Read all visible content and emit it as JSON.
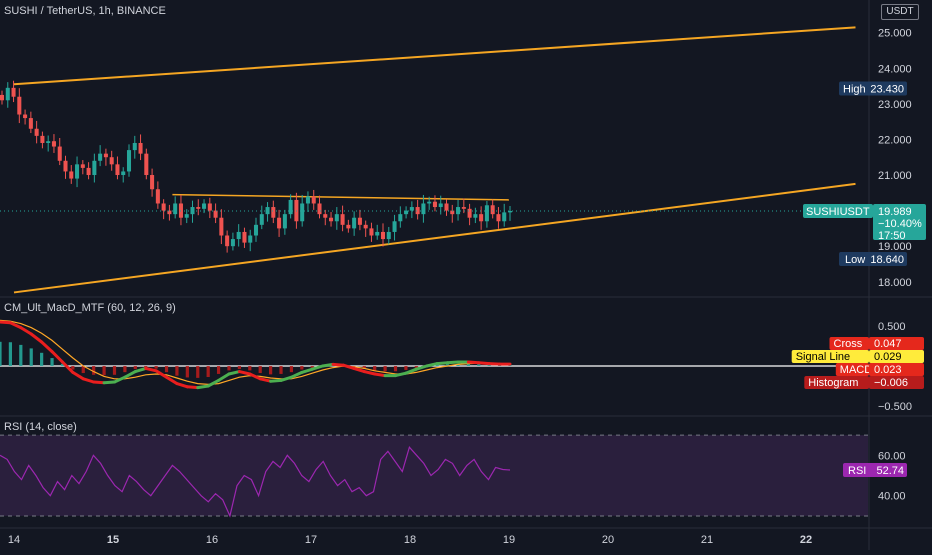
{
  "header": {
    "symbol_title": "SUSHI / TetherUS, 1h, BINANCE",
    "currency_button": "USDT",
    "macd_title": "CM_Ult_MacD_MTF (60, 12, 26, 9)",
    "rsi_title": "RSI (14, close)"
  },
  "colors": {
    "background": "#131722",
    "up": "#26a69a",
    "down": "#ef5350",
    "trendline": "#f5a623",
    "rsi_line": "#9c27b0",
    "rsi_band": "#2a1f3d",
    "macd_up": "#4caf50",
    "macd_down": "#e91e1e",
    "signal": "#ffa726"
  },
  "chart_data": [
    {
      "type": "candlestick",
      "name": "SUSHIUSDT",
      "timeframe": "1h",
      "exchange": "BINANCE",
      "x_ticks": [
        "14",
        "15",
        "16",
        "17",
        "18",
        "19",
        "20",
        "21",
        "22"
      ],
      "y_ticks": [
        "25.000",
        "24.000",
        "23.000",
        "22.000",
        "21.000",
        "19.000",
        "18.000"
      ],
      "ylim": [
        17.6,
        25.3
      ],
      "y_tick_values": [
        25,
        24,
        23,
        22,
        21,
        19,
        18
      ],
      "candles_close": [
        23.1,
        23.45,
        23.2,
        22.7,
        22.6,
        22.3,
        22.1,
        21.9,
        21.95,
        21.8,
        21.4,
        21.1,
        20.9,
        21.3,
        21.2,
        21.0,
        21.4,
        21.6,
        21.5,
        21.3,
        21.0,
        21.1,
        21.7,
        21.9,
        21.6,
        21.0,
        20.6,
        20.2,
        20.0,
        19.9,
        20.2,
        19.8,
        19.9,
        20.1,
        20.05,
        20.2,
        20.0,
        19.8,
        19.3,
        19.0,
        19.2,
        19.4,
        19.1,
        19.3,
        19.6,
        19.9,
        20.1,
        19.8,
        19.5,
        19.9,
        20.3,
        19.7,
        20.2,
        20.4,
        20.2,
        19.9,
        19.8,
        19.7,
        19.9,
        19.6,
        19.5,
        19.8,
        19.6,
        19.5,
        19.3,
        19.4,
        19.2,
        19.4,
        19.7,
        19.9,
        20.0,
        20.1,
        19.9,
        20.2,
        20.25,
        20.1,
        20.2,
        20.0,
        19.9,
        20.1,
        20.05,
        19.8,
        19.9,
        19.7,
        20.15,
        19.9,
        19.7,
        19.95,
        19.989
      ],
      "resistance_line": [
        [
          "15.6",
          20.45
        ],
        [
          "19",
          20.3
        ]
      ],
      "upper_channel": [
        [
          "14",
          23.55
        ],
        [
          "22.5",
          25.15
        ]
      ],
      "lower_channel": [
        [
          "14",
          17.7
        ],
        [
          "22.5",
          20.75
        ]
      ],
      "price_labels": {
        "high": "High",
        "high_value": "23.430",
        "low": "Low",
        "low_value": "18.640",
        "last_name": "SUSHIUSDT",
        "last_value": "19.989",
        "last_change": "−10.40%",
        "countdown": "17:50"
      },
      "high": 23.43,
      "low": 18.64,
      "last": 19.989
    },
    {
      "type": "line",
      "name": "CM_Ult_MacD_MTF (60, 12, 26, 9)",
      "y_ticks": [
        "0.500",
        "−0.500"
      ],
      "y_tick_values": [
        0.5,
        -0.5
      ],
      "ylim": [
        -0.6,
        0.6
      ],
      "macd": [
        0.55,
        0.54,
        0.48,
        0.4,
        0.3,
        0.18,
        0.05,
        -0.08,
        -0.16,
        -0.2,
        -0.21,
        -0.2,
        -0.14,
        -0.07,
        -0.03,
        -0.06,
        -0.14,
        -0.22,
        -0.26,
        -0.27,
        -0.25,
        -0.18,
        -0.1,
        -0.07,
        -0.1,
        -0.16,
        -0.19,
        -0.18,
        -0.14,
        -0.08,
        -0.04,
        0.0,
        0.02,
        0.01,
        -0.03,
        -0.07,
        -0.1,
        -0.12,
        -0.12,
        -0.09,
        -0.04,
        0.0,
        0.03,
        0.04,
        0.05,
        0.05,
        0.04,
        0.03,
        0.024,
        0.023
      ],
      "signal": [
        0.57,
        0.56,
        0.53,
        0.48,
        0.41,
        0.32,
        0.21,
        0.1,
        0.0,
        -0.07,
        -0.13,
        -0.16,
        -0.16,
        -0.14,
        -0.11,
        -0.1,
        -0.11,
        -0.15,
        -0.19,
        -0.22,
        -0.23,
        -0.22,
        -0.18,
        -0.14,
        -0.12,
        -0.13,
        -0.15,
        -0.16,
        -0.16,
        -0.13,
        -0.09,
        -0.05,
        -0.02,
        0.0,
        -0.01,
        -0.03,
        -0.06,
        -0.08,
        -0.1,
        -0.1,
        -0.08,
        -0.05,
        -0.02,
        0.0,
        0.02,
        0.03,
        0.035,
        0.032,
        0.03,
        0.029
      ],
      "labels": [
        {
          "name": "Cross",
          "value": "0.047",
          "bg": "#e5281c",
          "fg": "#ffffff"
        },
        {
          "name": "Signal Line",
          "value": "0.029",
          "bg": "#ffeb3b",
          "fg": "#000000"
        },
        {
          "name": "MACD",
          "value": "0.023",
          "bg": "#e5281c",
          "fg": "#ffffff"
        },
        {
          "name": "Histogram",
          "value": "−0.006",
          "bg": "#b71c1c",
          "fg": "#ffffff"
        }
      ]
    },
    {
      "type": "line",
      "name": "RSI (14, close)",
      "y_ticks": [
        "60.00",
        "40.00"
      ],
      "y_tick_values": [
        60,
        40
      ],
      "ylim": [
        27,
        75
      ],
      "band": [
        30,
        70
      ],
      "values": [
        60,
        58,
        52,
        48,
        55,
        50,
        44,
        40,
        47,
        43,
        50,
        46,
        52,
        60,
        56,
        50,
        45,
        42,
        50,
        47,
        43,
        40,
        45,
        50,
        55,
        52,
        48,
        44,
        40,
        37,
        41,
        38,
        30,
        45,
        50,
        48,
        40,
        52,
        57,
        54,
        60,
        56,
        50,
        47,
        53,
        57,
        50,
        45,
        48,
        42,
        44,
        40,
        42,
        58,
        62,
        57,
        52,
        64,
        60,
        56,
        50,
        53,
        58,
        56,
        50,
        55,
        58,
        52,
        48,
        54,
        53,
        52.74
      ],
      "label_name": "RSI",
      "label_value": "52.74"
    }
  ]
}
